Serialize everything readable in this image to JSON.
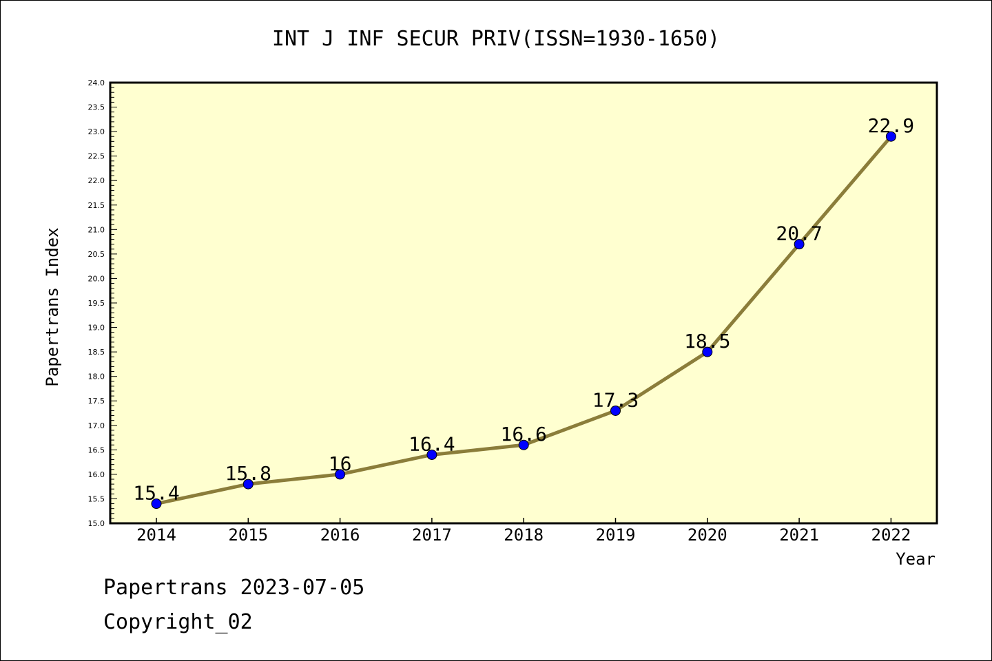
{
  "chart_data": {
    "type": "line",
    "title": "INT J INF SECUR PRIV(ISSN=1930-1650)",
    "xlabel": "Year",
    "ylabel": "Papertrans Index",
    "x": [
      "2014",
      "2015",
      "2016",
      "2017",
      "2018",
      "2019",
      "2020",
      "2021",
      "2022"
    ],
    "series": [
      {
        "values": [
          15.4,
          15.8,
          16.0,
          16.4,
          16.6,
          17.3,
          18.5,
          20.7,
          22.9
        ],
        "labels": [
          "15.4",
          "15.8",
          "16",
          "16.4",
          "16.6",
          "17.3",
          "18.5",
          "20.7",
          "22.9"
        ]
      }
    ],
    "ylim": [
      15.0,
      24.0
    ],
    "yticks": [
      "15.0",
      "15.5",
      "16.0",
      "16.5",
      "17.0",
      "17.5",
      "18.0",
      "18.5",
      "19.0",
      "19.5",
      "20.0",
      "20.5",
      "21.0",
      "21.5",
      "22.0",
      "22.5",
      "23.0",
      "23.5",
      "24.0"
    ],
    "grid": false,
    "colors": {
      "plot_bg": "#ffffd0",
      "line": "#8b7d3a",
      "marker": "#0000ff"
    }
  },
  "footer": {
    "line1": "Papertrans 2023-07-05",
    "line2": "Copyright_02"
  }
}
